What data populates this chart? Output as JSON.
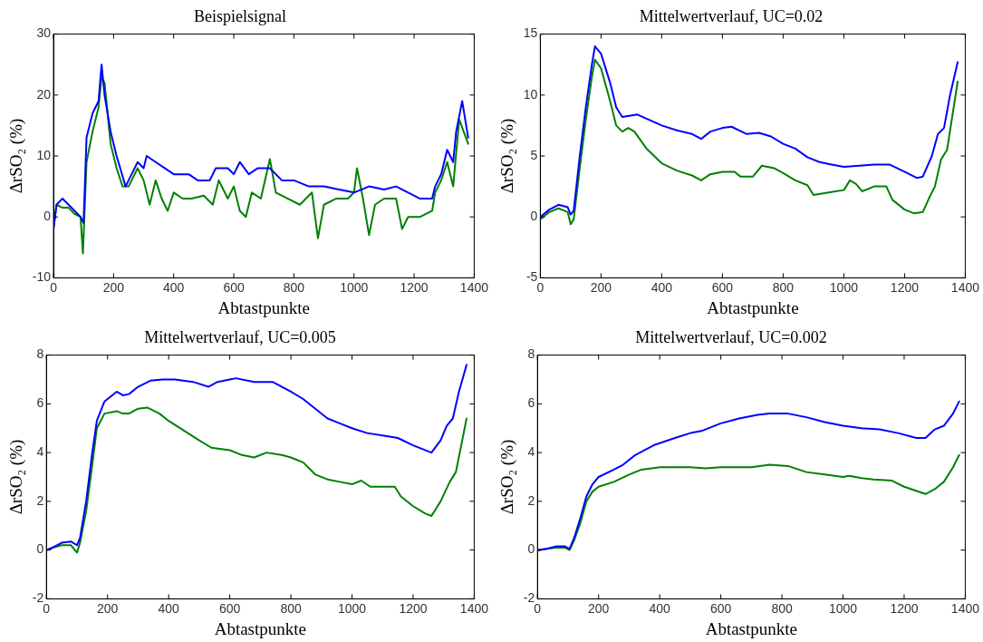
{
  "chart_data": [
    {
      "type": "line",
      "title": "Beispielsignal",
      "xlabel": "Abtastpunkte",
      "ylabel": "ΔrSO₂ (%)",
      "xlim": [
        0,
        1400
      ],
      "xticks": [
        0,
        200,
        400,
        600,
        800,
        1000,
        1200,
        1400
      ],
      "ylim": [
        -10,
        30
      ],
      "yticks": [
        -10,
        0,
        10,
        20,
        30
      ],
      "grid": false,
      "legend": false,
      "marker": "none",
      "line_style": "solid",
      "series": [
        {
          "color": "#0000ff",
          "x": [
            0,
            10,
            30,
            50,
            70,
            90,
            100,
            110,
            130,
            150,
            160,
            170,
            190,
            210,
            240,
            260,
            280,
            300,
            310,
            340,
            370,
            400,
            420,
            450,
            480,
            520,
            540,
            580,
            600,
            620,
            650,
            680,
            720,
            760,
            800,
            850,
            900,
            950,
            1000,
            1050,
            1100,
            1140,
            1180,
            1220,
            1260,
            1270,
            1290,
            1310,
            1330,
            1340,
            1360,
            1380
          ],
          "values": [
            -2,
            2,
            3,
            2,
            1,
            0,
            -1,
            13,
            17,
            19,
            25,
            20,
            14,
            10,
            5,
            7,
            9,
            8,
            10,
            9,
            8,
            7,
            7,
            7,
            6,
            6,
            8,
            8,
            7,
            9,
            7,
            8,
            8,
            6,
            6,
            5,
            5,
            4.5,
            4,
            5,
            4.5,
            5,
            4,
            3,
            3,
            5,
            7,
            11,
            9,
            14,
            19,
            13
          ]
        },
        {
          "color": "#008000",
          "x": [
            0,
            10,
            30,
            50,
            70,
            90,
            98,
            110,
            130,
            150,
            160,
            170,
            190,
            210,
            230,
            250,
            280,
            300,
            320,
            340,
            360,
            380,
            400,
            430,
            460,
            500,
            530,
            550,
            580,
            600,
            620,
            640,
            660,
            690,
            720,
            740,
            780,
            820,
            860,
            880,
            900,
            940,
            980,
            1000,
            1010,
            1030,
            1050,
            1070,
            1100,
            1140,
            1160,
            1180,
            1220,
            1260,
            1270,
            1290,
            1310,
            1330,
            1350,
            1380
          ],
          "values": [
            -2,
            2,
            1.5,
            1.5,
            0.5,
            0,
            -6,
            9,
            14,
            18,
            23,
            22,
            12,
            8,
            5,
            5,
            8,
            6,
            2,
            6,
            3,
            1,
            4,
            3,
            3,
            3.5,
            2,
            6,
            3,
            5,
            1,
            0,
            4,
            3,
            9.5,
            4,
            3,
            2,
            4,
            -3.5,
            2,
            3,
            3,
            4,
            8,
            3,
            -3,
            2,
            3,
            3,
            -2,
            0,
            0,
            1,
            4,
            6,
            9,
            5,
            16,
            12
          ]
        }
      ]
    },
    {
      "type": "line",
      "title": "Mittelwertverlauf, UC=0.02",
      "xlabel": "Abtastpunkte",
      "ylabel": "ΔrSO₂ (%)",
      "xlim": [
        0,
        1400
      ],
      "xticks": [
        0,
        200,
        400,
        600,
        800,
        1000,
        1200,
        1400
      ],
      "ylim": [
        -5,
        15
      ],
      "yticks": [
        -5,
        0,
        5,
        10,
        15
      ],
      "grid": false,
      "legend": false,
      "marker": "none",
      "line_style": "solid",
      "series": [
        {
          "color": "#0000ff",
          "x": [
            0,
            30,
            60,
            90,
            100,
            110,
            130,
            150,
            170,
            180,
            200,
            230,
            250,
            270,
            320,
            400,
            450,
            500,
            530,
            560,
            600,
            630,
            680,
            720,
            760,
            800,
            840,
            880,
            920,
            960,
            1000,
            1050,
            1100,
            1150,
            1200,
            1240,
            1260,
            1290,
            1310,
            1330,
            1350,
            1375
          ],
          "values": [
            0,
            0.6,
            1,
            0.8,
            0.2,
            0.5,
            5,
            9,
            12.5,
            14,
            13.4,
            11,
            9,
            8.2,
            8.4,
            7.5,
            7.1,
            6.8,
            6.4,
            7,
            7.3,
            7.4,
            6.8,
            6.9,
            6.6,
            6,
            5.6,
            4.9,
            4.5,
            4.3,
            4.1,
            4.2,
            4.3,
            4.3,
            3.7,
            3.2,
            3.3,
            5,
            6.8,
            7.3,
            10,
            12.7
          ]
        },
        {
          "color": "#008000",
          "x": [
            0,
            30,
            60,
            90,
            100,
            110,
            130,
            150,
            170,
            180,
            200,
            230,
            250,
            270,
            290,
            310,
            350,
            400,
            450,
            500,
            530,
            560,
            600,
            640,
            660,
            700,
            730,
            770,
            800,
            840,
            880,
            900,
            950,
            1000,
            1020,
            1040,
            1060,
            1100,
            1140,
            1160,
            1200,
            1230,
            1260,
            1280,
            1300,
            1320,
            1340,
            1375
          ],
          "values": [
            -0.2,
            0.4,
            0.7,
            0.4,
            -0.6,
            -0.2,
            4,
            8,
            11.5,
            12.9,
            12.2,
            9.5,
            7.5,
            7,
            7.3,
            7,
            5.6,
            4.4,
            3.8,
            3.4,
            3,
            3.5,
            3.7,
            3.7,
            3.3,
            3.3,
            4.2,
            4,
            3.6,
            3,
            2.6,
            1.8,
            2,
            2.2,
            3,
            2.7,
            2.1,
            2.5,
            2.5,
            1.4,
            0.6,
            0.3,
            0.4,
            1.5,
            2.5,
            4.7,
            5.5,
            11.1
          ]
        }
      ]
    },
    {
      "type": "line",
      "title": "Mittelwertverlauf, UC=0.005",
      "xlabel": "Abtastpunkte",
      "ylabel": "ΔrSO₂ (%)",
      "xlim": [
        0,
        1400
      ],
      "xticks": [
        0,
        200,
        400,
        600,
        800,
        1000,
        1200,
        1400
      ],
      "ylim": [
        -2,
        8
      ],
      "yticks": [
        -2,
        0,
        2,
        4,
        6,
        8
      ],
      "grid": false,
      "legend": false,
      "marker": "none",
      "line_style": "solid",
      "series": [
        {
          "color": "#0000ff",
          "x": [
            0,
            20,
            50,
            80,
            100,
            110,
            130,
            150,
            165,
            190,
            230,
            250,
            270,
            300,
            340,
            380,
            420,
            480,
            530,
            560,
            620,
            680,
            740,
            800,
            840,
            880,
            920,
            960,
            1000,
            1050,
            1100,
            1150,
            1200,
            1260,
            1290,
            1310,
            1330,
            1350,
            1375
          ],
          "values": [
            0,
            0.1,
            0.3,
            0.35,
            0.2,
            0.5,
            2,
            4,
            5.3,
            6.1,
            6.5,
            6.35,
            6.4,
            6.7,
            6.95,
            7,
            7,
            6.9,
            6.7,
            6.9,
            7.05,
            6.9,
            6.9,
            6.5,
            6.2,
            5.8,
            5.4,
            5.2,
            5,
            4.8,
            4.7,
            4.6,
            4.3,
            4,
            4.5,
            5.1,
            5.4,
            6.5,
            7.6
          ]
        },
        {
          "color": "#008000",
          "x": [
            0,
            20,
            50,
            80,
            100,
            110,
            130,
            150,
            165,
            190,
            230,
            250,
            270,
            300,
            330,
            370,
            400,
            450,
            500,
            540,
            600,
            640,
            680,
            720,
            770,
            800,
            840,
            880,
            920,
            960,
            1000,
            1030,
            1060,
            1100,
            1140,
            1160,
            1200,
            1240,
            1260,
            1290,
            1320,
            1340,
            1375
          ],
          "values": [
            0,
            0.1,
            0.2,
            0.2,
            -0.1,
            0.3,
            1.6,
            3.5,
            5,
            5.6,
            5.7,
            5.6,
            5.6,
            5.8,
            5.85,
            5.6,
            5.3,
            4.9,
            4.5,
            4.2,
            4.1,
            3.9,
            3.8,
            4,
            3.9,
            3.8,
            3.6,
            3.1,
            2.9,
            2.8,
            2.7,
            2.85,
            2.6,
            2.6,
            2.6,
            2.2,
            1.8,
            1.5,
            1.4,
            2,
            2.8,
            3.2,
            5.4
          ]
        }
      ]
    },
    {
      "type": "line",
      "title": "Mittelwertverlauf, UC=0.002",
      "xlabel": "Abtastpunkte",
      "ylabel": "ΔrSO₂ (%)",
      "xlim": [
        0,
        1400
      ],
      "xticks": [
        0,
        200,
        400,
        600,
        800,
        1000,
        1200,
        1400
      ],
      "ylim": [
        -2,
        8
      ],
      "yticks": [
        -2,
        0,
        2,
        4,
        6,
        8
      ],
      "grid": false,
      "legend": false,
      "marker": "none",
      "line_style": "solid",
      "series": [
        {
          "color": "#0000ff",
          "x": [
            0,
            30,
            60,
            90,
            105,
            120,
            140,
            160,
            180,
            200,
            250,
            280,
            320,
            380,
            450,
            500,
            540,
            600,
            660,
            720,
            760,
            820,
            880,
            940,
            1000,
            1060,
            1120,
            1180,
            1240,
            1270,
            1300,
            1330,
            1360,
            1380
          ],
          "values": [
            0,
            0.05,
            0.15,
            0.15,
            0.05,
            0.5,
            1.3,
            2.2,
            2.7,
            3,
            3.3,
            3.5,
            3.9,
            4.3,
            4.6,
            4.8,
            4.9,
            5.2,
            5.4,
            5.55,
            5.6,
            5.6,
            5.45,
            5.25,
            5.1,
            5,
            4.95,
            4.8,
            4.6,
            4.6,
            4.95,
            5.1,
            5.6,
            6.1
          ]
        },
        {
          "color": "#008000",
          "x": [
            0,
            30,
            60,
            90,
            105,
            120,
            140,
            160,
            180,
            200,
            250,
            300,
            340,
            400,
            500,
            550,
            600,
            660,
            700,
            760,
            820,
            880,
            940,
            1000,
            1020,
            1060,
            1100,
            1160,
            1200,
            1270,
            1300,
            1330,
            1360,
            1380
          ],
          "values": [
            0,
            0.05,
            0.1,
            0.1,
            0,
            0.4,
            1.1,
            2,
            2.4,
            2.6,
            2.8,
            3.1,
            3.3,
            3.4,
            3.4,
            3.35,
            3.4,
            3.4,
            3.4,
            3.5,
            3.45,
            3.2,
            3.1,
            3,
            3.05,
            2.95,
            2.9,
            2.85,
            2.6,
            2.3,
            2.5,
            2.8,
            3.4,
            3.9
          ]
        }
      ]
    }
  ]
}
